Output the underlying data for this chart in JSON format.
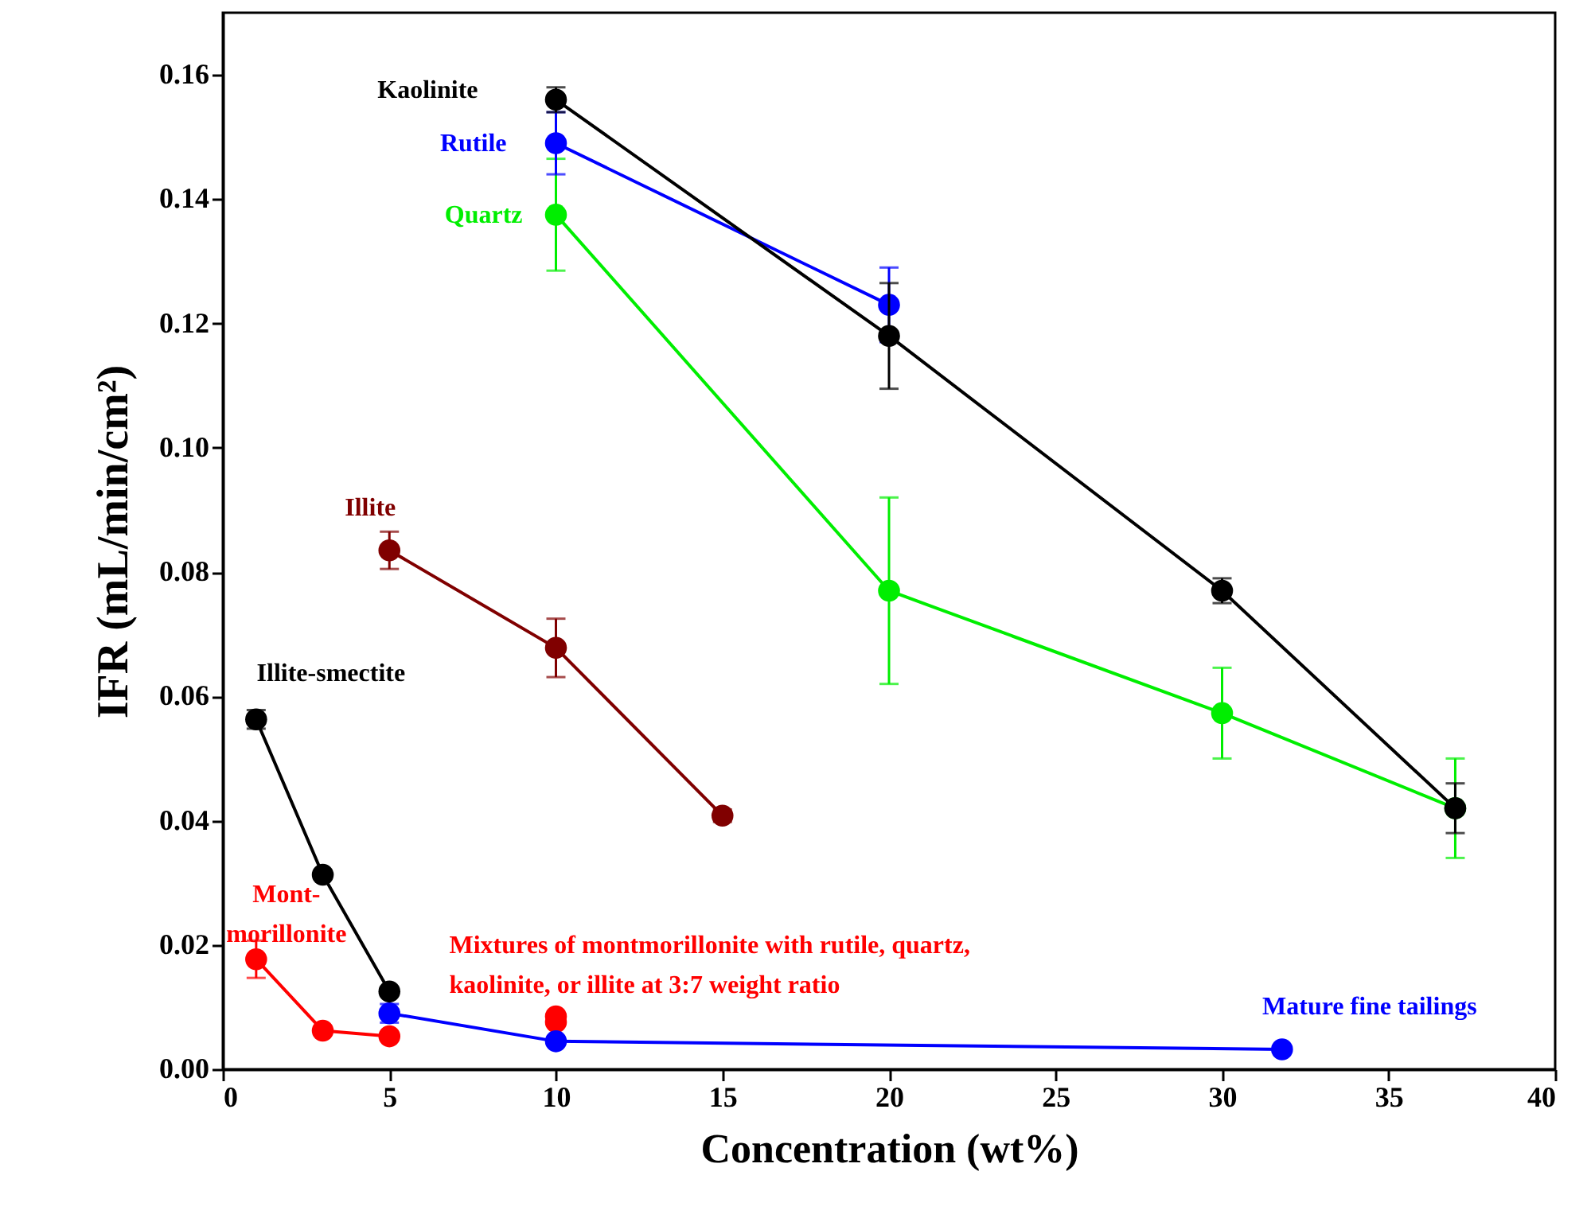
{
  "chart_data": {
    "type": "line",
    "xlabel": "Concentration (wt%)",
    "ylabel": "IFR (mL/min/cm²)",
    "xlim": [
      0,
      40
    ],
    "ylim": [
      0,
      0.17
    ],
    "xticks": [
      0,
      5,
      10,
      15,
      20,
      25,
      30,
      35,
      40
    ],
    "yticks": [
      {
        "value": 0,
        "label": "0.00"
      },
      {
        "value": 0.02,
        "label": "0.02"
      },
      {
        "value": 0.04,
        "label": "0.04"
      },
      {
        "value": 0.06,
        "label": "0.06"
      },
      {
        "value": 0.08,
        "label": "0.08"
      },
      {
        "value": 0.1,
        "label": "0.10"
      },
      {
        "value": 0.12,
        "label": "0.12"
      },
      {
        "value": 0.14,
        "label": "0.14"
      },
      {
        "value": 0.16,
        "label": "0.16"
      }
    ],
    "marker": "circle",
    "grid": false,
    "series": [
      {
        "name": "Kaolinite",
        "color": "#000000",
        "x": [
          10,
          20,
          30,
          37
        ],
        "values": [
          0.156,
          0.118,
          0.077,
          0.042
        ],
        "errors": [
          0.002,
          0.0085,
          0.002,
          0.004
        ]
      },
      {
        "name": "Rutile",
        "color": "#0000ff",
        "x": [
          10,
          20
        ],
        "values": [
          0.149,
          0.123
        ],
        "errors": [
          0.005,
          0.006
        ]
      },
      {
        "name": "Quartz",
        "color": "#00ee00",
        "x": [
          10,
          20,
          30,
          37
        ],
        "values": [
          0.1375,
          0.077,
          0.0573,
          0.042
        ],
        "errors": [
          0.009,
          0.015,
          0.0073,
          0.008
        ]
      },
      {
        "name": "Illite",
        "color": "#800000",
        "x": [
          5,
          10,
          15
        ],
        "values": [
          0.0835,
          0.0678,
          0.0408
        ],
        "errors": [
          0.003,
          0.0047,
          0.001
        ]
      },
      {
        "name": "Illite-smectite",
        "color": "#000000",
        "x": [
          1,
          3,
          5
        ],
        "values": [
          0.0563,
          0.0313,
          0.0125
        ],
        "errors": [
          0.0015,
          null,
          null
        ]
      },
      {
        "name": "Mont-\nmorillonite",
        "color": "#ff0000",
        "x": [
          1,
          3,
          5
        ],
        "values": [
          0.0177,
          0.0062,
          0.0053
        ],
        "errors": [
          0.003,
          null,
          null
        ]
      },
      {
        "name": "Mature fine tailings",
        "color": "#0000ff",
        "x": [
          5,
          10,
          31.8
        ],
        "values": [
          0.009,
          0.0045,
          0.0032
        ],
        "errors": [
          0.0015,
          null,
          null
        ]
      },
      {
        "name": "Mixtures of montmorillonite with rutile, quartz,\nkaolinite, or illite at 3:7 weight ratio",
        "type": "scatter",
        "color": "#ff0000",
        "x": [
          10,
          10
        ],
        "values": [
          0.0085,
          0.0076
        ]
      }
    ]
  }
}
